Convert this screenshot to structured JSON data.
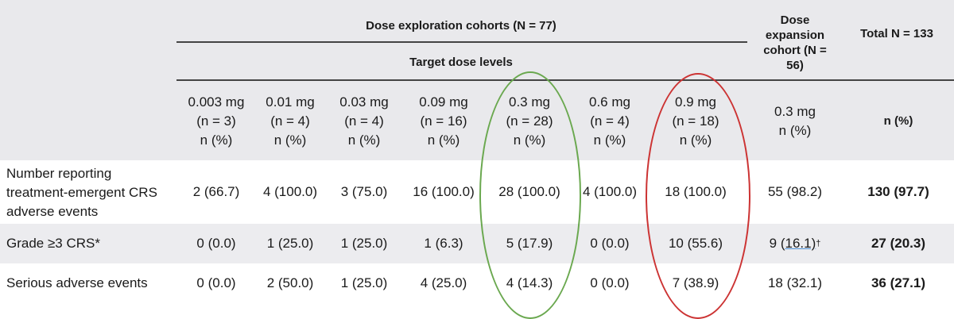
{
  "header": {
    "dose_exploration": "Dose exploration cohorts (N = 77)",
    "target_dose_levels": "Target dose levels",
    "dose_expansion": "Dose expansion cohort (N = 56)",
    "total": "Total N = 133"
  },
  "columns": [
    {
      "dose": "0.003 mg",
      "n": "(n = 3)",
      "pct": "n (%)"
    },
    {
      "dose": "0.01 mg",
      "n": "(n = 4)",
      "pct": "n (%)"
    },
    {
      "dose": "0.03 mg",
      "n": "(n = 4)",
      "pct": "n (%)"
    },
    {
      "dose": "0.09 mg",
      "n": "(n = 16)",
      "pct": "n (%)"
    },
    {
      "dose": "0.3 mg",
      "n": "(n = 28)",
      "pct": "n (%)"
    },
    {
      "dose": "0.6 mg",
      "n": "(n = 4)",
      "pct": "n (%)"
    },
    {
      "dose": "0.9 mg",
      "n": "(n = 18)",
      "pct": "n (%)"
    },
    {
      "dose": "0.3 mg",
      "n": "n (%)"
    },
    {
      "n": "n (%)"
    }
  ],
  "rows": [
    {
      "label": "Number reporting treatment-emergent CRS adverse events",
      "values": [
        "2 (66.7)",
        "4 (100.0)",
        "3 (75.0)",
        "16 (100.0)",
        "28 (100.0)",
        "4 (100.0)",
        "18 (100.0)",
        "55 (98.2)",
        "130 (97.7)"
      ]
    },
    {
      "label": "Grade ≥3 CRS*",
      "values": [
        "0 (0.0)",
        "1 (25.0)",
        "1 (25.0)",
        "1 (6.3)",
        "5 (17.9)",
        "0 (0.0)",
        "10 (55.6)",
        "9 (",
        "27 (20.3)"
      ],
      "expansion_underlined": "16.1)",
      "expansion_mark": "†"
    },
    {
      "label": "Serious adverse events",
      "values": [
        "0 (0.0)",
        "2 (50.0)",
        "1 (25.0)",
        "4 (25.0)",
        "4 (14.3)",
        "0 (0.0)",
        "7 (38.9)",
        "18 (32.1)",
        "36 (27.1)"
      ]
    }
  ],
  "highlights": [
    {
      "column": "0.3 mg",
      "color": "#6aa84f"
    },
    {
      "column": "0.9 mg",
      "color": "#cc3333"
    }
  ]
}
